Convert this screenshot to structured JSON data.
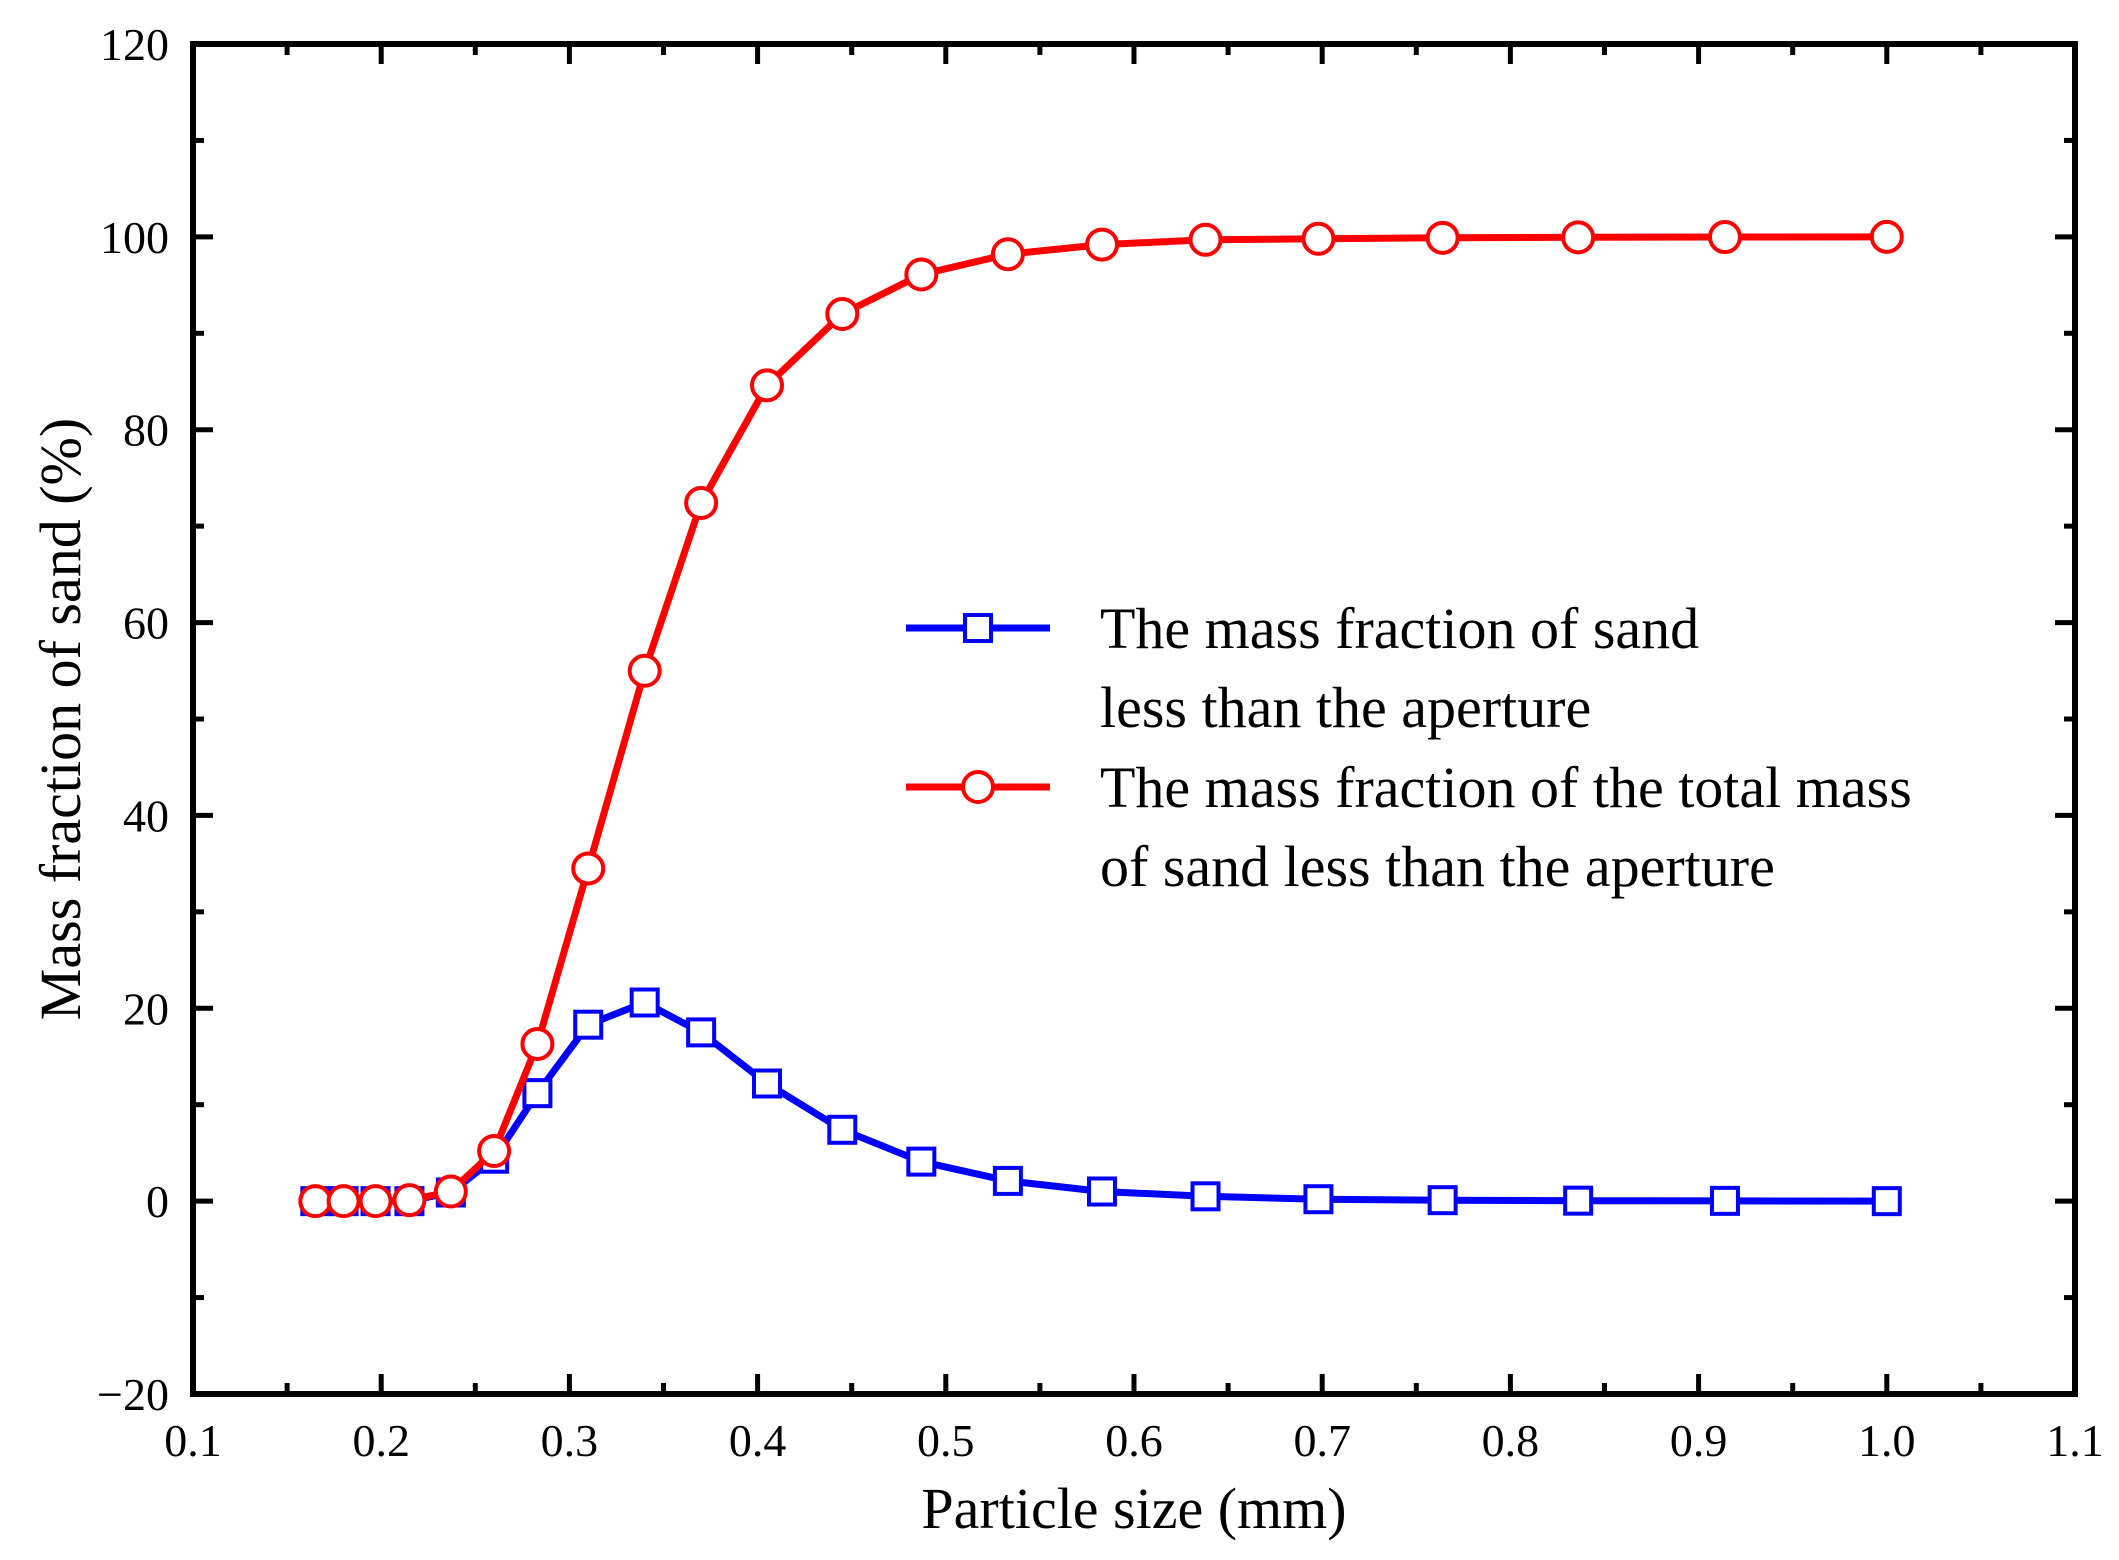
{
  "chart_data": {
    "type": "line",
    "title": "",
    "xlabel": "Particle size (mm)",
    "ylabel": "Mass fraction of sand (%)",
    "xlim": [
      0.1,
      1.1
    ],
    "ylim": [
      -20,
      120
    ],
    "xticks": [
      0.1,
      0.2,
      0.3,
      0.4,
      0.5,
      0.6,
      0.7,
      0.8,
      0.9,
      1.0,
      1.1
    ],
    "xtick_labels": [
      "0.1",
      "0.2",
      "0.3",
      "0.4",
      "0.5",
      "0.6",
      "0.7",
      "0.8",
      "0.9",
      "1.0",
      "1.1"
    ],
    "yticks": [
      -20,
      0,
      20,
      40,
      60,
      80,
      100,
      120
    ],
    "ytick_labels": [
      "−20",
      "0",
      "20",
      "40",
      "60",
      "80",
      "100",
      "120"
    ],
    "grid": false,
    "legend_position": "center-right",
    "series": [
      {
        "name": "The mass fraction of sand less than the aperture",
        "legend_lines": [
          "The mass fraction of sand",
          "less than the aperture"
        ],
        "color": "#0000ff",
        "marker": "square",
        "x": [
          0.165,
          0.18,
          0.197,
          0.215,
          0.237,
          0.26,
          0.283,
          0.31,
          0.34,
          0.37,
          0.405,
          0.445,
          0.487,
          0.533,
          0.583,
          0.638,
          0.698,
          0.764,
          0.836,
          0.914,
          1.0
        ],
        "y": [
          0,
          0,
          0,
          0,
          0.9,
          4.4,
          11.2,
          18.3,
          20.6,
          17.5,
          12.2,
          7.4,
          4.1,
          2.1,
          1.0,
          0.5,
          0.2,
          0.1,
          0.05,
          0.03,
          0
        ]
      },
      {
        "name": "The mass fraction of the total mass of sand less than the aperture",
        "legend_lines": [
          "The mass fraction of the total mass",
          "of sand less than the aperture"
        ],
        "color": "#ff0000",
        "marker": "circle",
        "x": [
          0.165,
          0.18,
          0.197,
          0.215,
          0.237,
          0.26,
          0.283,
          0.31,
          0.34,
          0.37,
          0.405,
          0.445,
          0.487,
          0.533,
          0.583,
          0.638,
          0.698,
          0.764,
          0.836,
          0.914,
          1.0
        ],
        "y": [
          0,
          0,
          0,
          0.1,
          1.0,
          5.2,
          16.3,
          34.5,
          55.0,
          72.4,
          84.6,
          92.0,
          96.1,
          98.2,
          99.2,
          99.7,
          99.8,
          99.9,
          99.95,
          99.98,
          100
        ]
      }
    ]
  }
}
